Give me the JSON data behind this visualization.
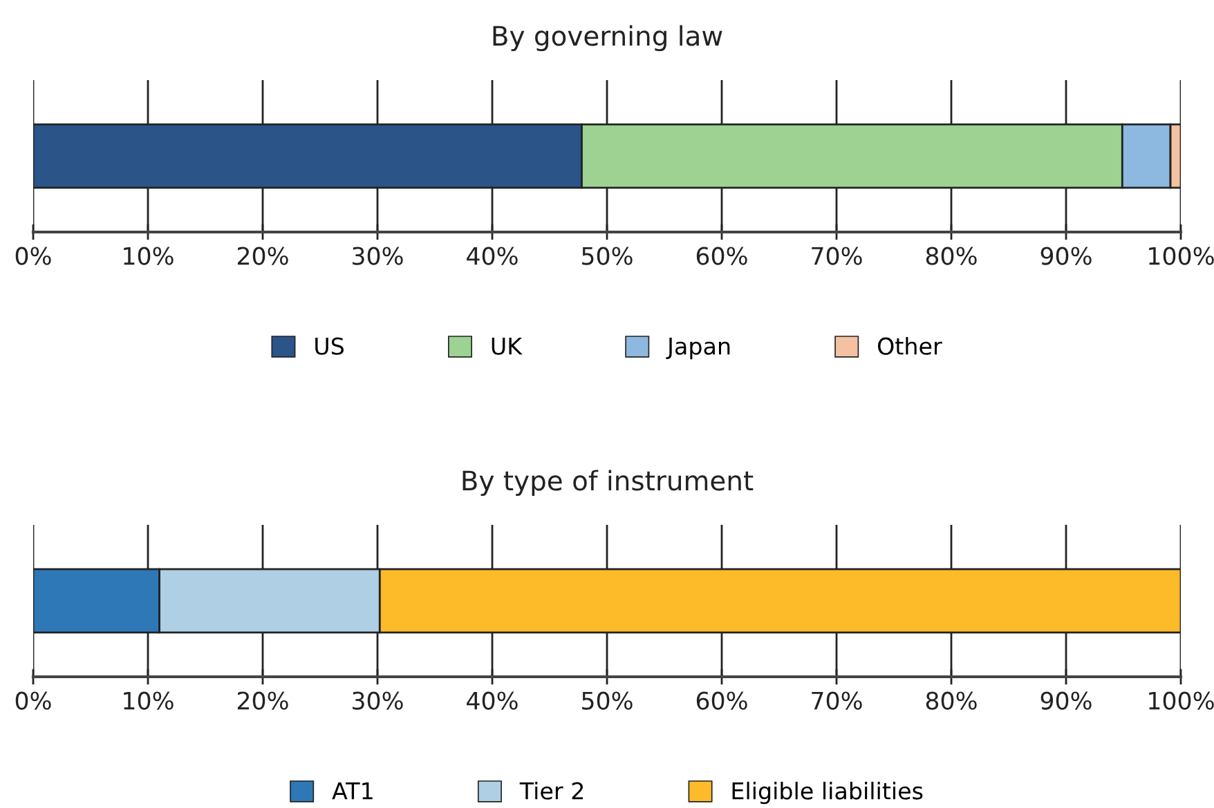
{
  "chart_data": [
    {
      "type": "bar",
      "orientation": "horizontal",
      "stacked": true,
      "title": "By governing law",
      "categories": [
        null
      ],
      "series": [
        {
          "name": "US",
          "color": "#2b5489",
          "values": [
            47.8
          ]
        },
        {
          "name": "UK",
          "color": "#9dd293",
          "values": [
            47.1
          ]
        },
        {
          "name": "Japan",
          "color": "#8db9e0",
          "values": [
            4.2
          ]
        },
        {
          "name": "Other",
          "color": "#f4c2a0",
          "values": [
            0.9
          ]
        }
      ],
      "xlim": [
        0,
        100
      ],
      "xticks": [
        {
          "value": 0,
          "label": "0%"
        },
        {
          "value": 10,
          "label": "10%"
        },
        {
          "value": 20,
          "label": "20%"
        },
        {
          "value": 30,
          "label": "30%"
        },
        {
          "value": 40,
          "label": "40%"
        },
        {
          "value": 50,
          "label": "50%"
        },
        {
          "value": 60,
          "label": "60%"
        },
        {
          "value": 70,
          "label": "70%"
        },
        {
          "value": 80,
          "label": "80%"
        },
        {
          "value": 90,
          "label": "90%"
        },
        {
          "value": 100,
          "label": "100%"
        }
      ],
      "grid": "x",
      "legend": "bottom",
      "tick_labels": "x"
    },
    {
      "type": "bar",
      "orientation": "horizontal",
      "stacked": true,
      "title": "By type of instrument",
      "categories": [
        null
      ],
      "series": [
        {
          "name": "AT1",
          "color": "#2e78b7",
          "values": [
            11.0
          ]
        },
        {
          "name": "Tier 2",
          "color": "#aecfe4",
          "values": [
            19.2
          ]
        },
        {
          "name": "Eligible liabilities",
          "color": "#fdbb2a",
          "values": [
            69.8
          ]
        }
      ],
      "xlim": [
        0,
        100
      ],
      "xticks": [
        {
          "value": 0,
          "label": "0%"
        },
        {
          "value": 10,
          "label": "10%"
        },
        {
          "value": 20,
          "label": "20%"
        },
        {
          "value": 30,
          "label": "30%"
        },
        {
          "value": 40,
          "label": "40%"
        },
        {
          "value": 50,
          "label": "50%"
        },
        {
          "value": 60,
          "label": "60%"
        },
        {
          "value": 70,
          "label": "70%"
        },
        {
          "value": 80,
          "label": "80%"
        },
        {
          "value": 90,
          "label": "90%"
        },
        {
          "value": 100,
          "label": "100%"
        }
      ],
      "grid": "x",
      "legend": "bottom",
      "tick_labels": "x"
    }
  ]
}
